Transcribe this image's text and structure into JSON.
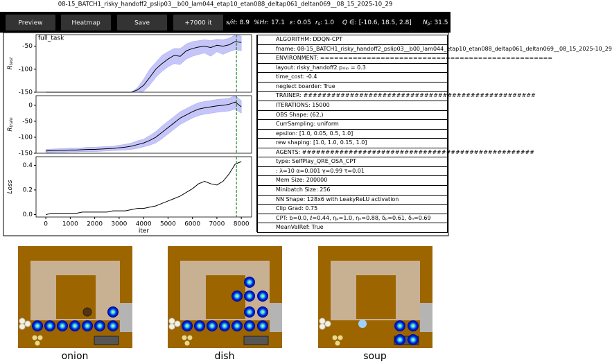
{
  "window_title": "08-15_BATCH1_risky_handoff2_pslip03__b00_lam044_etap10_etan088_deltap061_deltan069__08_15_2025-10_29",
  "toolbar": {
    "buttons": [
      "Preview",
      "Heatmap",
      "Save",
      "+7000 it"
    ],
    "stats": [
      {
        "label": "s/it",
        "value": "8.9"
      },
      {
        "label": "%Hr",
        "value": "17.1"
      },
      {
        "label": "ε",
        "value": "0.05"
      },
      {
        "label": "r",
        "sub": "s",
        "value": "1.0"
      },
      {
        "label": "Q ∈",
        "value": "[-10.6, 18.5, 2.8]"
      },
      {
        "label": "N",
        "sub": "ρ",
        "value": "31.5"
      }
    ]
  },
  "chart_data": [
    {
      "type": "line",
      "title": "full_task",
      "ylabel": "R",
      "ylabel_sub": "test",
      "color": "#000000",
      "band_color": "#6e6ef0",
      "vline": 7800,
      "vline_color": "#008000",
      "x": [
        0,
        250,
        500,
        750,
        1000,
        1250,
        1500,
        1750,
        2000,
        2250,
        2500,
        2750,
        3000,
        3250,
        3500,
        3750,
        4000,
        4250,
        4500,
        4750,
        5000,
        5250,
        5500,
        5750,
        6000,
        6250,
        6500,
        6750,
        7000,
        7250,
        7500,
        7750,
        8000
      ],
      "values": [
        -150,
        -150,
        -150,
        -150,
        -150,
        -150,
        -150,
        -150,
        -150,
        -150,
        -150,
        -150,
        -150,
        -150,
        -150,
        -145,
        -135,
        -118,
        -100,
        -88,
        -78,
        -70,
        -72,
        -60,
        -55,
        -52,
        -50,
        -53,
        -48,
        -50,
        -47,
        -40,
        -42
      ],
      "lower": [
        -150,
        -150,
        -150,
        -150,
        -150,
        -150,
        -150,
        -150,
        -150,
        -150,
        -150,
        -150,
        -150,
        -150,
        -150,
        -150,
        -148,
        -135,
        -118,
        -105,
        -95,
        -88,
        -90,
        -78,
        -72,
        -68,
        -65,
        -72,
        -62,
        -68,
        -62,
        -58,
        -60
      ],
      "upper": [
        -150,
        -150,
        -150,
        -150,
        -150,
        -150,
        -150,
        -150,
        -150,
        -150,
        -150,
        -150,
        -150,
        -150,
        -150,
        -140,
        -122,
        -100,
        -85,
        -70,
        -62,
        -55,
        -55,
        -45,
        -40,
        -38,
        -36,
        -38,
        -35,
        -36,
        -33,
        -25,
        -28
      ],
      "xlim": [
        -400,
        8420
      ],
      "ylim": [
        -150,
        -25
      ],
      "yticks": [
        -150,
        -100,
        -50
      ]
    },
    {
      "type": "line",
      "ylabel": "R",
      "ylabel_sub": "train",
      "color": "#000000",
      "band_color": "#6e6ef0",
      "vline": 7800,
      "vline_color": "#008000",
      "x": [
        0,
        250,
        500,
        750,
        1000,
        1250,
        1500,
        1750,
        2000,
        2250,
        2500,
        2750,
        3000,
        3250,
        3500,
        3750,
        4000,
        4250,
        4500,
        4750,
        5000,
        5250,
        5500,
        5750,
        6000,
        6250,
        6500,
        6750,
        7000,
        7250,
        7500,
        7750,
        8000
      ],
      "values": [
        -143,
        -142,
        -141,
        -141,
        -140,
        -140,
        -139,
        -138,
        -138,
        -137,
        -136,
        -135,
        -133,
        -131,
        -128,
        -123,
        -118,
        -110,
        -100,
        -85,
        -70,
        -55,
        -40,
        -30,
        -20,
        -12,
        -8,
        -5,
        -2,
        0,
        3,
        10,
        -5
      ],
      "lower": [
        -148,
        -148,
        -147,
        -147,
        -146,
        -146,
        -145,
        -145,
        -145,
        -144,
        -143,
        -142,
        -141,
        -140,
        -138,
        -135,
        -130,
        -125,
        -118,
        -105,
        -90,
        -75,
        -60,
        -50,
        -40,
        -32,
        -28,
        -25,
        -22,
        -20,
        -18,
        -12,
        -25
      ],
      "upper": [
        -138,
        -137,
        -136,
        -135,
        -134,
        -134,
        -133,
        -131,
        -131,
        -130,
        -129,
        -128,
        -125,
        -122,
        -118,
        -111,
        -106,
        -95,
        -82,
        -65,
        -50,
        -35,
        -20,
        -10,
        0,
        8,
        12,
        15,
        18,
        20,
        22,
        30,
        15
      ],
      "xlim": [
        -400,
        8420
      ],
      "ylim": [
        -150,
        30
      ],
      "yticks": [
        -150,
        -100,
        -50,
        0
      ]
    },
    {
      "type": "line",
      "ylabel": "Loss",
      "xlabel": "iter",
      "color": "#000000",
      "vline": 7800,
      "vline_color": "#008000",
      "x": [
        0,
        250,
        500,
        750,
        1000,
        1250,
        1500,
        1750,
        2000,
        2250,
        2500,
        2750,
        3000,
        3250,
        3500,
        3750,
        4000,
        4250,
        4500,
        4750,
        5000,
        5250,
        5500,
        5750,
        6000,
        6250,
        6500,
        6750,
        7000,
        7250,
        7500,
        7750,
        8000
      ],
      "values": [
        0.0,
        0.01,
        0.01,
        0.01,
        0.01,
        0.01,
        0.02,
        0.02,
        0.02,
        0.02,
        0.02,
        0.03,
        0.03,
        0.03,
        0.04,
        0.05,
        0.05,
        0.06,
        0.07,
        0.09,
        0.11,
        0.13,
        0.15,
        0.18,
        0.21,
        0.25,
        0.27,
        0.25,
        0.24,
        0.27,
        0.33,
        0.41,
        0.43
      ],
      "xlim": [
        -400,
        8420
      ],
      "ylim": [
        -0.02,
        0.47
      ],
      "yticks": [
        {
          "value": 0,
          "label": "0.0"
        },
        0.2,
        0.4
      ],
      "xticks": [
        0,
        1000,
        2000,
        3000,
        4000,
        5000,
        6000,
        7000,
        8000
      ]
    }
  ],
  "info_rows": [
    "ALGORITHM: DDQN-CPT",
    "fname: 08-15_BATCH1_risky_handoff2_pslip03__b00_lam044_etap10_etan088_deltap061_deltan069__08_15_2025-10_29",
    "ENVIRONMENT: ==================================================",
    "layout: risky_handoff2 pₛₗᵢₚ = 0.3",
    "time_cost: -0.4",
    "neglect boarder: True",
    "TRAINER: ##################################################",
    "ITERATIONS: 15000",
    "OBS Shape: (62,)",
    "CurrSampling: uniform",
    "epsilon: [1.0, 0.05, 0.5, 1.0]",
    "rew shaping: [1.0, 1.0, 0.15, 1.0]",
    "AGENTS: ##################################################",
    "type: SelfPlay_QRE_OSA_CPT",
    ": λ=10  α=0.001  γ=0.99   τ=0.01",
    "Mem Size: 200000",
    "Minibatch Size: 256",
    "NN Shape: 128x6 with LeakyReLU activation",
    "Clip Grad: 0.75",
    "CPT: b=0.0, ℓ=0.44, ηₚ=1.0, ηₙ=0.88, δₚ=0.61, δₙ=0.69",
    "MeanValRef: True"
  ],
  "panels": [
    "onion",
    "dish",
    "soup"
  ]
}
